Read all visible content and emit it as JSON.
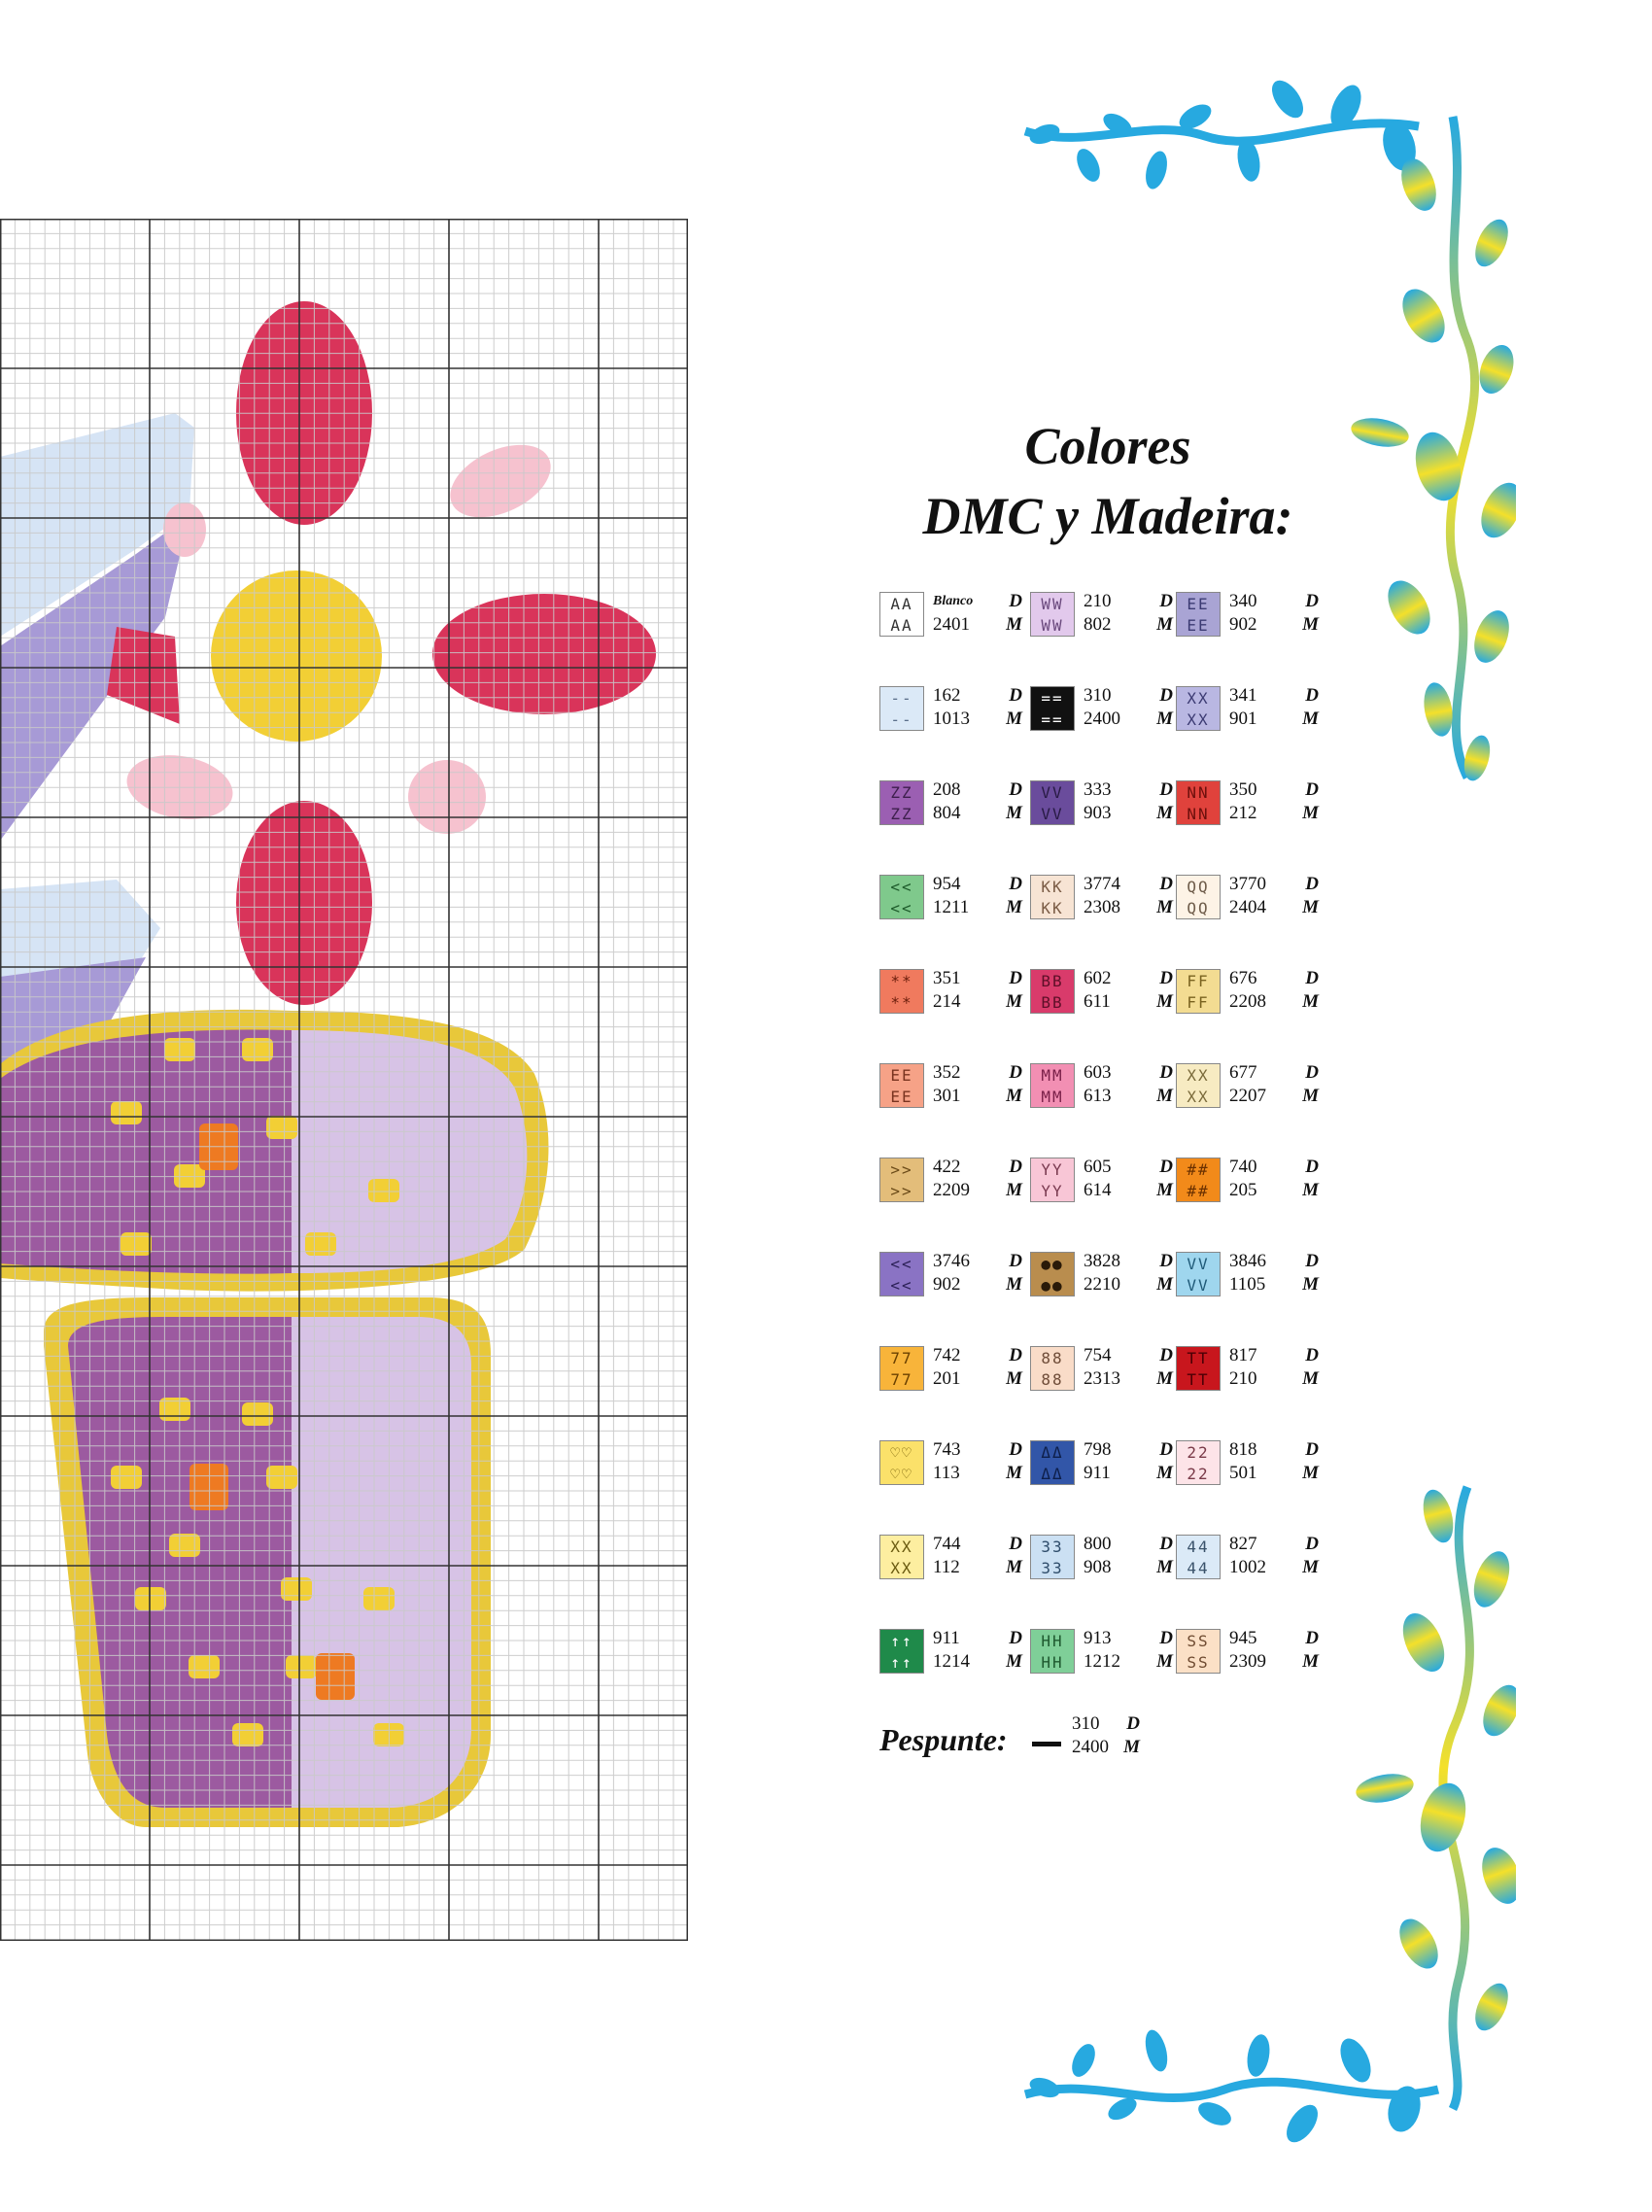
{
  "title": {
    "line1": "Colores",
    "line2": "DMC y Madeira:"
  },
  "letters": {
    "dmc": "D",
    "madeira": "M"
  },
  "legend": [
    {
      "dmc": "Blanco",
      "madeira": "2401",
      "symbol": "AA",
      "color": "#ffffff",
      "ink": "#333333"
    },
    {
      "dmc": "210",
      "madeira": "802",
      "symbol": "WW",
      "color": "#e2c9ec",
      "ink": "#6b4a7e"
    },
    {
      "dmc": "340",
      "madeira": "902",
      "symbol": "EE",
      "color": "#a9a4d4",
      "ink": "#3c3b73"
    },
    {
      "dmc": "162",
      "madeira": "1013",
      "symbol": "--",
      "color": "#dbe9f7",
      "ink": "#5a6f8a"
    },
    {
      "dmc": "310",
      "madeira": "2400",
      "symbol": "==",
      "color": "#111111",
      "ink": "#ffffff"
    },
    {
      "dmc": "341",
      "madeira": "901",
      "symbol": "XX",
      "color": "#b9b7e2",
      "ink": "#3c3b73"
    },
    {
      "dmc": "208",
      "madeira": "804",
      "symbol": "ZZ",
      "color": "#9b5fb2",
      "ink": "#3d1f4c"
    },
    {
      "dmc": "333",
      "madeira": "903",
      "symbol": "VV",
      "color": "#6a4c9c",
      "ink": "#281a44"
    },
    {
      "dmc": "350",
      "madeira": "212",
      "symbol": "NN",
      "color": "#e0423c",
      "ink": "#6b0f0c"
    },
    {
      "dmc": "954",
      "madeira": "1211",
      "symbol": "<<",
      "color": "#7fc98c",
      "ink": "#1d5a2a"
    },
    {
      "dmc": "3774",
      "madeira": "2308",
      "symbol": "KK",
      "color": "#f7e4d4",
      "ink": "#7a5b45"
    },
    {
      "dmc": "3770",
      "madeira": "2404",
      "symbol": "QQ",
      "color": "#fdf3e6",
      "ink": "#6e5c4a"
    },
    {
      "dmc": "351",
      "madeira": "214",
      "symbol": "**",
      "color": "#f07a5e",
      "ink": "#6b1e0c"
    },
    {
      "dmc": "602",
      "madeira": "611",
      "symbol": "BB",
      "color": "#d93b6b",
      "ink": "#5e0f28"
    },
    {
      "dmc": "676",
      "madeira": "2208",
      "symbol": "FF",
      "color": "#f3dc92",
      "ink": "#7a6320"
    },
    {
      "dmc": "352",
      "madeira": "301",
      "symbol": "EE",
      "color": "#f6a287",
      "ink": "#7a3420"
    },
    {
      "dmc": "603",
      "madeira": "613",
      "symbol": "MM",
      "color": "#f28fb3",
      "ink": "#7a2049"
    },
    {
      "dmc": "677",
      "madeira": "2207",
      "symbol": "XX",
      "color": "#f7ebc2",
      "ink": "#7a6a3a"
    },
    {
      "dmc": "422",
      "madeira": "2209",
      "symbol": ">>",
      "color": "#e3bd7a",
      "ink": "#6a4a18"
    },
    {
      "dmc": "605",
      "madeira": "614",
      "symbol": "YY",
      "color": "#f8c6d6",
      "ink": "#7a3a50"
    },
    {
      "dmc": "740",
      "madeira": "205",
      "symbol": "##",
      "color": "#f28a1a",
      "ink": "#6a3000"
    },
    {
      "dmc": "3746",
      "madeira": "902",
      "symbol": "<<",
      "color": "#8a73c4",
      "ink": "#2a1f55"
    },
    {
      "dmc": "3828",
      "madeira": "2210",
      "symbol": "●●",
      "color": "#b98d4e",
      "ink": "#2a1a08"
    },
    {
      "dmc": "3846",
      "madeira": "1105",
      "symbol": "VV",
      "color": "#9fd6ee",
      "ink": "#1f5a78"
    },
    {
      "dmc": "742",
      "madeira": "201",
      "symbol": "77",
      "color": "#f8b43a",
      "ink": "#6a4000"
    },
    {
      "dmc": "754",
      "madeira": "2313",
      "symbol": "88",
      "color": "#f9dcc8",
      "ink": "#6e4c38"
    },
    {
      "dmc": "817",
      "madeira": "210",
      "symbol": "TT",
      "color": "#c8161d",
      "ink": "#4a0005"
    },
    {
      "dmc": "743",
      "madeira": "113",
      "symbol": "♡♡",
      "color": "#fbe16a",
      "ink": "#6a5400"
    },
    {
      "dmc": "798",
      "madeira": "911",
      "symbol": "ΔΔ",
      "color": "#3256a8",
      "ink": "#0e1f4a"
    },
    {
      "dmc": "818",
      "madeira": "501",
      "symbol": "22",
      "color": "#fde4e8",
      "ink": "#7a3a48"
    },
    {
      "dmc": "744",
      "madeira": "112",
      "symbol": "XX",
      "color": "#fdeea0",
      "ink": "#6a5a10"
    },
    {
      "dmc": "800",
      "madeira": "908",
      "symbol": "33",
      "color": "#cbe0f3",
      "ink": "#2e4c6a"
    },
    {
      "dmc": "827",
      "madeira": "1002",
      "symbol": "44",
      "color": "#dbeaf7",
      "ink": "#3a526a"
    },
    {
      "dmc": "911",
      "madeira": "1214",
      "symbol": "↑↑",
      "color": "#1f8a4a",
      "ink": "#ffffff"
    },
    {
      "dmc": "913",
      "madeira": "1212",
      "symbol": "HH",
      "color": "#7fcf98",
      "ink": "#1f5a30"
    },
    {
      "dmc": "945",
      "madeira": "2309",
      "symbol": "SS",
      "color": "#fbe0c6",
      "ink": "#6e4a30"
    }
  ],
  "pespunte": {
    "label": "Pespunte:",
    "dmc": "310",
    "madeira": "2400"
  },
  "pattern_colors": {
    "grid_major": "#333333",
    "grid_minor": "#c9c9c9",
    "petal_red": "#d9345a",
    "petal_red_dark": "#b5163f",
    "center_yellow": "#f2cf35",
    "pink_dots": "#f6c2cf",
    "lavender_light": "#d7c3e6",
    "purple_dark": "#9c5aa0",
    "gold_trim": "#e8c83a",
    "orange": "#ee7a22",
    "blue_light": "#d6e4f5",
    "blue_purple": "#a79ad6",
    "vine_blue": "#27a9e0",
    "vine_yellow": "#f4e02a"
  }
}
